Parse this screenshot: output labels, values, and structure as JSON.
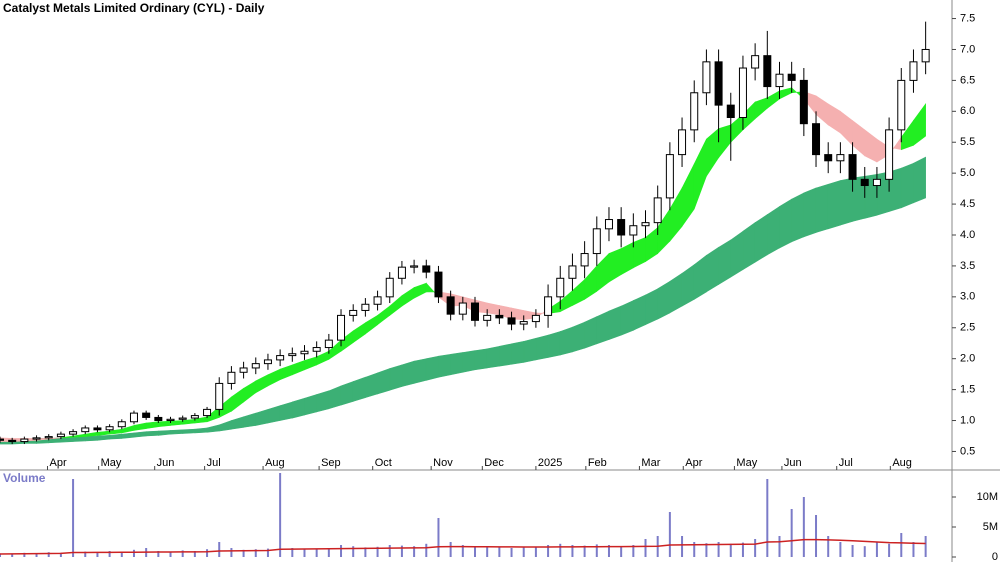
{
  "chart_data": [
    {
      "type": "candlestick",
      "title": "Catalyst Metals Limited Ordinary (CYL) - Daily",
      "x": [
        0,
        1,
        2,
        3,
        4,
        5,
        6,
        7,
        8,
        9,
        10,
        11,
        12,
        13,
        14,
        15,
        16,
        17,
        18,
        19,
        20,
        21,
        22,
        23,
        24,
        25,
        26,
        27,
        28,
        29,
        30,
        31,
        32,
        33,
        34,
        35,
        36,
        37,
        38,
        39,
        40,
        41,
        42,
        43,
        44,
        45,
        46,
        47,
        48,
        49,
        50,
        51,
        52,
        53,
        54,
        55,
        56,
        57,
        58,
        59,
        60,
        61,
        62,
        63,
        64,
        65,
        66,
        67,
        68,
        69,
        70,
        71,
        72,
        73,
        74,
        75,
        76
      ],
      "open": [
        0.7,
        0.68,
        0.66,
        0.7,
        0.72,
        0.74,
        0.78,
        0.82,
        0.88,
        0.85,
        0.9,
        0.98,
        1.12,
        1.05,
        1.0,
        1.02,
        1.04,
        1.08,
        1.18,
        1.6,
        1.78,
        1.85,
        1.92,
        1.98,
        2.05,
        2.08,
        2.12,
        2.18,
        2.3,
        2.7,
        2.78,
        2.88,
        3.0,
        3.3,
        3.48,
        3.5,
        3.4,
        3.0,
        2.72,
        2.9,
        2.62,
        2.7,
        2.66,
        2.56,
        2.6,
        2.7,
        3.0,
        3.3,
        3.5,
        3.7,
        4.1,
        4.25,
        4.0,
        4.15,
        4.2,
        4.6,
        5.3,
        5.7,
        6.3,
        6.8,
        6.1,
        5.9,
        6.7,
        6.9,
        6.4,
        6.6,
        6.5,
        5.8,
        5.3,
        5.2,
        5.3,
        4.9,
        4.8,
        4.9,
        5.7,
        6.5,
        6.8
      ],
      "high": [
        0.74,
        0.72,
        0.74,
        0.76,
        0.78,
        0.82,
        0.86,
        0.92,
        0.92,
        0.94,
        1.02,
        1.16,
        1.16,
        1.09,
        1.06,
        1.08,
        1.12,
        1.22,
        1.7,
        1.88,
        1.95,
        2.02,
        2.08,
        2.15,
        2.18,
        2.22,
        2.28,
        2.4,
        2.8,
        2.88,
        2.98,
        3.1,
        3.4,
        3.58,
        3.6,
        3.6,
        3.5,
        3.1,
        3.0,
        3.0,
        2.8,
        2.8,
        2.76,
        2.7,
        2.8,
        3.2,
        3.5,
        3.7,
        3.9,
        4.3,
        4.45,
        4.45,
        4.35,
        4.4,
        4.8,
        5.5,
        5.9,
        6.5,
        7.0,
        7.0,
        6.3,
        6.9,
        7.1,
        7.3,
        6.8,
        6.8,
        6.7,
        6.0,
        5.5,
        5.5,
        5.5,
        5.1,
        5.1,
        5.9,
        6.7,
        7.0,
        7.45
      ],
      "low": [
        0.64,
        0.62,
        0.62,
        0.66,
        0.68,
        0.7,
        0.74,
        0.78,
        0.81,
        0.81,
        0.86,
        0.94,
        1.01,
        0.96,
        0.96,
        0.98,
        1.0,
        1.04,
        1.08,
        1.5,
        1.68,
        1.75,
        1.82,
        1.88,
        1.95,
        1.98,
        2.02,
        2.08,
        2.2,
        2.6,
        2.68,
        2.78,
        2.9,
        3.2,
        3.38,
        3.3,
        2.9,
        2.62,
        2.62,
        2.52,
        2.52,
        2.56,
        2.46,
        2.46,
        2.5,
        2.5,
        2.8,
        3.1,
        3.3,
        3.5,
        3.9,
        3.8,
        3.8,
        3.95,
        4.0,
        4.4,
        5.1,
        5.5,
        6.1,
        5.5,
        5.2,
        5.7,
        6.5,
        6.2,
        6.2,
        6.3,
        5.6,
        5.1,
        5.0,
        5.0,
        4.7,
        4.6,
        4.6,
        4.7,
        5.5,
        6.3,
        6.6
      ],
      "close": [
        0.68,
        0.66,
        0.7,
        0.72,
        0.74,
        0.78,
        0.82,
        0.88,
        0.85,
        0.9,
        0.98,
        1.12,
        1.05,
        1.0,
        1.02,
        1.04,
        1.08,
        1.18,
        1.6,
        1.78,
        1.85,
        1.92,
        1.98,
        2.05,
        2.08,
        2.12,
        2.18,
        2.3,
        2.7,
        2.78,
        2.88,
        3.0,
        3.3,
        3.48,
        3.5,
        3.4,
        3.0,
        2.72,
        2.9,
        2.62,
        2.7,
        2.66,
        2.56,
        2.6,
        2.7,
        3.0,
        3.3,
        3.5,
        3.7,
        4.1,
        4.25,
        4.0,
        4.15,
        4.2,
        4.6,
        5.3,
        5.7,
        6.3,
        6.8,
        6.1,
        5.9,
        6.7,
        6.9,
        6.4,
        6.6,
        6.5,
        5.8,
        5.3,
        5.2,
        5.3,
        4.9,
        4.8,
        4.9,
        5.7,
        6.5,
        6.8,
        7.0
      ],
      "up_color": "#ffffff",
      "down_color": "#000000",
      "bands": [
        {
          "color": "#3cb075",
          "a": [
            0.7,
            0.7,
            0.7,
            0.71,
            0.71,
            0.72,
            0.73,
            0.74,
            0.75,
            0.76,
            0.78,
            0.8,
            0.82,
            0.83,
            0.84,
            0.85,
            0.86,
            0.88,
            0.93,
            1.0,
            1.06,
            1.12,
            1.18,
            1.24,
            1.3,
            1.36,
            1.42,
            1.48,
            1.56,
            1.63,
            1.7,
            1.77,
            1.84,
            1.9,
            1.96,
            2.0,
            2.04,
            2.07,
            2.1,
            2.13,
            2.16,
            2.2,
            2.24,
            2.28,
            2.33,
            2.38,
            2.44,
            2.51,
            2.59,
            2.68,
            2.77,
            2.85,
            2.94,
            3.03,
            3.13,
            3.25,
            3.38,
            3.52,
            3.67,
            3.8,
            3.92,
            4.06,
            4.2,
            4.33,
            4.46,
            4.58,
            4.68,
            4.76,
            4.82,
            4.88,
            4.92,
            4.95,
            4.98,
            5.02,
            5.08,
            5.16,
            5.26
          ],
          "b": [
            0.62,
            0.62,
            0.63,
            0.63,
            0.64,
            0.65,
            0.66,
            0.67,
            0.68,
            0.7,
            0.71,
            0.73,
            0.75,
            0.76,
            0.78,
            0.79,
            0.8,
            0.81,
            0.83,
            0.86,
            0.89,
            0.92,
            0.96,
            1.0,
            1.04,
            1.09,
            1.14,
            1.19,
            1.25,
            1.31,
            1.37,
            1.43,
            1.49,
            1.55,
            1.6,
            1.65,
            1.7,
            1.74,
            1.78,
            1.82,
            1.85,
            1.88,
            1.91,
            1.94,
            1.98,
            2.02,
            2.06,
            2.11,
            2.17,
            2.24,
            2.31,
            2.38,
            2.46,
            2.55,
            2.64,
            2.74,
            2.85,
            2.96,
            3.08,
            3.2,
            3.32,
            3.44,
            3.56,
            3.68,
            3.79,
            3.89,
            3.97,
            4.04,
            4.1,
            4.16,
            4.22,
            4.27,
            4.32,
            4.38,
            4.44,
            4.52,
            4.6
          ]
        },
        {
          "color": "#22ee22",
          "alt_color": "#f5b0b0",
          "a": [
            0.66,
            0.66,
            0.67,
            0.68,
            0.7,
            0.72,
            0.75,
            0.78,
            0.81,
            0.83,
            0.86,
            0.92,
            0.96,
            0.98,
            0.99,
            1.0,
            1.02,
            1.06,
            1.22,
            1.38,
            1.52,
            1.64,
            1.74,
            1.83,
            1.9,
            1.97,
            2.03,
            2.12,
            2.3,
            2.45,
            2.58,
            2.7,
            2.85,
            3.02,
            3.15,
            3.22,
            3.0,
            2.85,
            2.86,
            2.76,
            2.74,
            2.71,
            2.64,
            2.63,
            2.66,
            2.8,
            2.93,
            3.1,
            3.28,
            3.5,
            3.7,
            3.78,
            3.88,
            3.96,
            4.12,
            4.42,
            4.76,
            5.15,
            5.55,
            5.72,
            5.78,
            5.95,
            6.15,
            6.22,
            6.33,
            6.38,
            6.2,
            5.95,
            5.78,
            5.65,
            5.45,
            5.28,
            5.18,
            5.3,
            5.58,
            5.85,
            6.12
          ],
          "b": [
            0.72,
            0.71,
            0.71,
            0.71,
            0.71,
            0.72,
            0.73,
            0.74,
            0.76,
            0.78,
            0.8,
            0.84,
            0.87,
            0.9,
            0.92,
            0.94,
            0.96,
            0.98,
            1.05,
            1.15,
            1.3,
            1.45,
            1.56,
            1.66,
            1.74,
            1.82,
            1.9,
            1.99,
            2.12,
            2.26,
            2.4,
            2.55,
            2.7,
            2.85,
            2.98,
            3.08,
            3.08,
            3.05,
            3.0,
            2.95,
            2.9,
            2.86,
            2.82,
            2.78,
            2.74,
            2.73,
            2.76,
            2.86,
            2.96,
            3.09,
            3.24,
            3.36,
            3.47,
            3.57,
            3.7,
            3.9,
            4.14,
            4.42,
            4.95,
            5.25,
            5.5,
            5.7,
            5.88,
            6.05,
            6.2,
            6.3,
            6.32,
            6.25,
            6.12,
            6.0,
            5.85,
            5.7,
            5.55,
            5.42,
            5.38,
            5.45,
            5.6
          ]
        }
      ],
      "xlim": [
        0,
        78
      ],
      "ylim": [
        0.2,
        7.8
      ],
      "yticks": [
        0.5,
        {
          "value": 1,
          "label": "1.0"
        },
        1.5,
        {
          "value": 2,
          "label": "2.0"
        },
        2.5,
        {
          "value": 3,
          "label": "3.0"
        },
        3.5,
        {
          "value": 4,
          "label": "4.0"
        },
        4.5,
        {
          "value": 5,
          "label": "5.0"
        },
        5.5,
        {
          "value": 6,
          "label": "6.0"
        },
        6.5,
        {
          "value": 7,
          "label": "7.0"
        },
        7.5
      ],
      "xticks": [
        {
          "value": 3.9,
          "label": "Apr"
        },
        {
          "value": 8.1,
          "label": "May"
        },
        {
          "value": 12.7,
          "label": "Jun"
        },
        {
          "value": 16.8,
          "label": "Jul"
        },
        {
          "value": 21.6,
          "label": "Aug"
        },
        {
          "value": 26.2,
          "label": "Sep"
        },
        {
          "value": 30.6,
          "label": "Oct"
        },
        {
          "value": 35.4,
          "label": "Nov"
        },
        {
          "value": 39.6,
          "label": "Dec"
        },
        {
          "value": 44,
          "label": "2025"
        },
        {
          "value": 48.1,
          "label": "Feb"
        },
        {
          "value": 52.5,
          "label": "Mar"
        },
        {
          "value": 56.1,
          "label": "Apr"
        },
        {
          "value": 60.3,
          "label": "May"
        },
        {
          "value": 64.2,
          "label": "Jun"
        },
        {
          "value": 68.7,
          "label": "Jul"
        },
        {
          "value": 73.1,
          "label": "Aug"
        }
      ]
    },
    {
      "type": "bar",
      "title": "Volume",
      "color": "#7b7bc8",
      "x": [
        0,
        1,
        2,
        3,
        4,
        5,
        6,
        7,
        8,
        9,
        10,
        11,
        12,
        13,
        14,
        15,
        16,
        17,
        18,
        19,
        20,
        21,
        22,
        23,
        24,
        25,
        26,
        27,
        28,
        29,
        30,
        31,
        32,
        33,
        34,
        35,
        36,
        37,
        38,
        39,
        40,
        41,
        42,
        43,
        44,
        45,
        46,
        47,
        48,
        49,
        50,
        51,
        52,
        53,
        54,
        55,
        56,
        57,
        58,
        59,
        60,
        61,
        62,
        63,
        64,
        65,
        66,
        67,
        68,
        69,
        70,
        71,
        72,
        73,
        74,
        75,
        76
      ],
      "values": [
        600000,
        500000,
        700000,
        600000,
        800000,
        700000,
        13000000,
        900000,
        800000,
        1000000,
        900000,
        1200000,
        1500000,
        1000000,
        900000,
        1100000,
        1000000,
        1300000,
        2500000,
        1500000,
        1200000,
        1300000,
        1400000,
        14000000,
        1500000,
        1300000,
        1400000,
        1500000,
        2000000,
        1800000,
        1600000,
        1700000,
        2000000,
        1900000,
        1800000,
        2200000,
        6500000,
        2500000,
        2000000,
        1800000,
        1700000,
        1600000,
        1500000,
        1700000,
        1600000,
        2000000,
        2200000,
        2000000,
        1900000,
        2100000,
        2000000,
        1800000,
        2000000,
        3000000,
        3500000,
        7500000,
        3500000,
        2500000,
        2300000,
        2500000,
        2200000,
        2400000,
        3000000,
        13000000,
        3500000,
        8000000,
        10000000,
        7000000,
        3500000,
        2500000,
        2000000,
        1800000,
        2500000,
        2200000,
        4000000,
        2500000,
        3500000
      ],
      "ma": [
        500000,
        520000,
        540000,
        560000,
        580000,
        600000,
        750000,
        760000,
        770000,
        780000,
        790000,
        800000,
        820000,
        830000,
        840000,
        850000,
        860000,
        880000,
        1000000,
        1020000,
        1040000,
        1060000,
        1080000,
        1300000,
        1320000,
        1340000,
        1360000,
        1380000,
        1400000,
        1420000,
        1440000,
        1460000,
        1480000,
        1500000,
        1520000,
        1540000,
        1700000,
        1720000,
        1720000,
        1710000,
        1700000,
        1690000,
        1680000,
        1670000,
        1660000,
        1670000,
        1680000,
        1690000,
        1700000,
        1710000,
        1720000,
        1730000,
        1750000,
        1780000,
        1800000,
        2000000,
        2020000,
        2040000,
        2060000,
        2080000,
        2100000,
        2120000,
        2150000,
        2500000,
        2550000,
        2700000,
        2900000,
        2900000,
        2850000,
        2800000,
        2700000,
        2600000,
        2500000,
        2400000,
        2350000,
        2300000,
        2250000
      ],
      "ma_color": "#cc2222",
      "xlim": [
        0,
        78
      ],
      "ylim": [
        0,
        14500000
      ],
      "yticks": [
        0,
        {
          "value": 5000000,
          "label": "5M"
        },
        {
          "value": 10000000,
          "label": "10M"
        }
      ]
    }
  ]
}
